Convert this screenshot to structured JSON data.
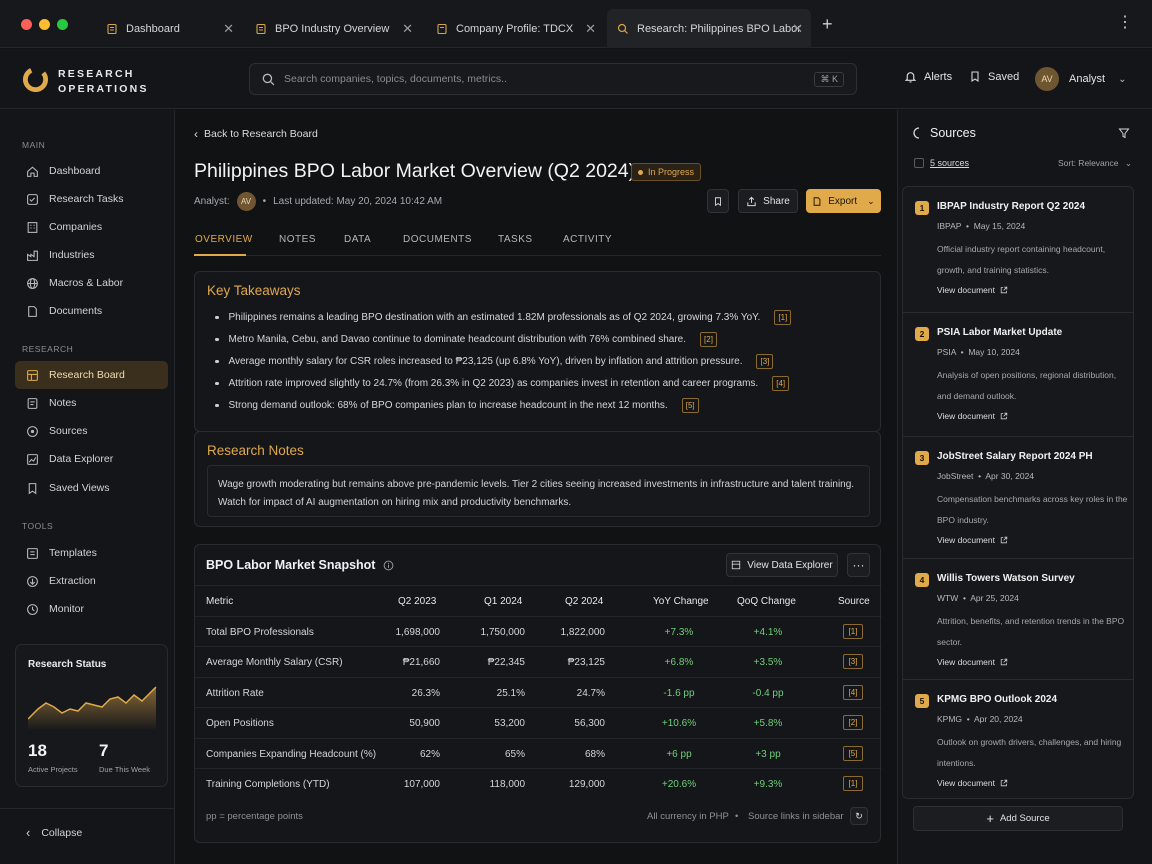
{
  "tabs": [
    {
      "label": "Dashboard"
    },
    {
      "label": "BPO Industry Overview"
    },
    {
      "label": "Company Profile: TDCX"
    },
    {
      "label": "Research: Philippines BPO Labor"
    }
  ],
  "header": {
    "logo_line1": "RESEARCH",
    "logo_line2": "OPERATIONS",
    "search_placeholder": "Search companies, topics, documents, metrics..",
    "search_shortcut": "⌘ K",
    "alerts": "Alerts",
    "saved": "Saved",
    "user_initials": "AV",
    "user_name": "Analyst"
  },
  "sidebar": {
    "main_label": "MAIN",
    "main_items": [
      "Dashboard",
      "Research Tasks",
      "Companies",
      "Industries",
      "Macros & Labor",
      "Documents"
    ],
    "research_label": "RESEARCH",
    "research_items": [
      "Research Board",
      "Notes",
      "Sources",
      "Data Explorer",
      "Saved Views"
    ],
    "tools_label": "TOOLS",
    "tools_items": [
      "Templates",
      "Extraction",
      "Monitor"
    ],
    "status": {
      "title": "Research Status",
      "active_projects": "18",
      "active_label": "Active Projects",
      "due": "7",
      "due_label": "Due This Week"
    },
    "collapse": "Collapse"
  },
  "main": {
    "back": "Back to Research Board",
    "title": "Philippines BPO Labor Market Overview (Q2 2024)",
    "status": "In Progress",
    "analyst_label": "Analyst:",
    "analyst_initials": "AV",
    "last_updated": "Last updated: May 20, 2024 10:42 AM",
    "share": "Share",
    "export": "Export",
    "tabs": [
      "OVERVIEW",
      "NOTES",
      "DATA",
      "DOCUMENTS",
      "TASKS",
      "ACTIVITY"
    ],
    "takeaways_title": "Key Takeaways",
    "takeaways": [
      {
        "text": "Philippines remains a leading BPO destination with an estimated 1.82M professionals as of Q2 2024, growing 7.3% YoY.",
        "cite": "[1]"
      },
      {
        "text": "Metro Manila, Cebu, and Davao continue to dominate headcount distribution with 76% combined share.",
        "cite": "[2]"
      },
      {
        "text": "Average monthly salary for CSR roles increased to ₱23,125 (up 6.8% YoY), driven by inflation and attrition pressure.",
        "cite": "[3]"
      },
      {
        "text": "Attrition rate improved slightly to 24.7% (from 26.3% in Q2 2023) as companies invest in retention and career programs.",
        "cite": "[4]"
      },
      {
        "text": "Strong demand outlook: 68% of BPO companies plan to increase headcount in the next 12 months.",
        "cite": "[5]"
      }
    ],
    "notes_title": "Research Notes",
    "notes_text": "Wage growth moderating but remains above pre-pandemic levels. Tier 2 cities seeing increased investments in infrastructure and talent training. Watch for impact of AI augmentation on hiring mix and productivity benchmarks.",
    "snapshot_title": "BPO Labor Market Snapshot",
    "view_explorer": "View Data Explorer",
    "table": {
      "headers": [
        "Metric",
        "Q2 2023",
        "Q1 2024",
        "Q2 2024",
        "YoY Change",
        "QoQ Change",
        "Source"
      ],
      "rows": [
        [
          "Total BPO Professionals",
          "1,698,000",
          "1,750,000",
          "1,822,000",
          "+7.3%",
          "+4.1%",
          "[1]"
        ],
        [
          "Average Monthly Salary (CSR)",
          "₱21,660",
          "₱22,345",
          "₱23,125",
          "+6.8%",
          "+3.5%",
          "[3]"
        ],
        [
          "Attrition Rate",
          "26.3%",
          "25.1%",
          "24.7%",
          "-1.6 pp",
          "-0.4 pp",
          "[4]"
        ],
        [
          "Open Positions",
          "50,900",
          "53,200",
          "56,300",
          "+10.6%",
          "+5.8%",
          "[2]"
        ],
        [
          "Companies Expanding Headcount (%)",
          "62%",
          "65%",
          "68%",
          "+6 pp",
          "+3 pp",
          "[5]"
        ],
        [
          "Training Completions (YTD)",
          "107,000",
          "118,000",
          "129,000",
          "+20.6%",
          "+9.3%",
          "[1]"
        ]
      ],
      "footnote": "pp = percentage points",
      "currency": "All currency in PHP",
      "source_links": "Source links in sidebar"
    }
  },
  "sources": {
    "title": "Sources",
    "count": "5 sources",
    "sort": "Sort: Relevance",
    "items": [
      {
        "num": "1",
        "title": "IBPAP Industry Report Q2 2024",
        "org": "IBPAP",
        "date": "May 15, 2024",
        "desc": "Official industry report containing headcount, growth, and training statistics.",
        "link": "View document"
      },
      {
        "num": "2",
        "title": "PSIA Labor Market Update",
        "org": "PSIA",
        "date": "May 10, 2024",
        "desc": "Analysis of open positions, regional distribution, and demand outlook.",
        "link": "View document"
      },
      {
        "num": "3",
        "title": "JobStreet Salary Report 2024 PH",
        "org": "JobStreet",
        "date": "Apr 30, 2024",
        "desc": "Compensation benchmarks across key roles in the BPO industry.",
        "link": "View document"
      },
      {
        "num": "4",
        "title": "Willis Towers Watson Survey",
        "org": "WTW",
        "date": "Apr 25, 2024",
        "desc": "Attrition, benefits, and retention trends in the BPO sector.",
        "link": "View document"
      },
      {
        "num": "5",
        "title": "KPMG BPO Outlook 2024",
        "org": "KPMG",
        "date": "Apr 20, 2024",
        "desc": "Outlook on growth drivers, challenges, and hiring intentions.",
        "link": "View document"
      }
    ],
    "add": "Add Source"
  },
  "colors": {
    "accent": "#e0a94a",
    "positive": "#6fcf7a",
    "background": "#111214"
  }
}
